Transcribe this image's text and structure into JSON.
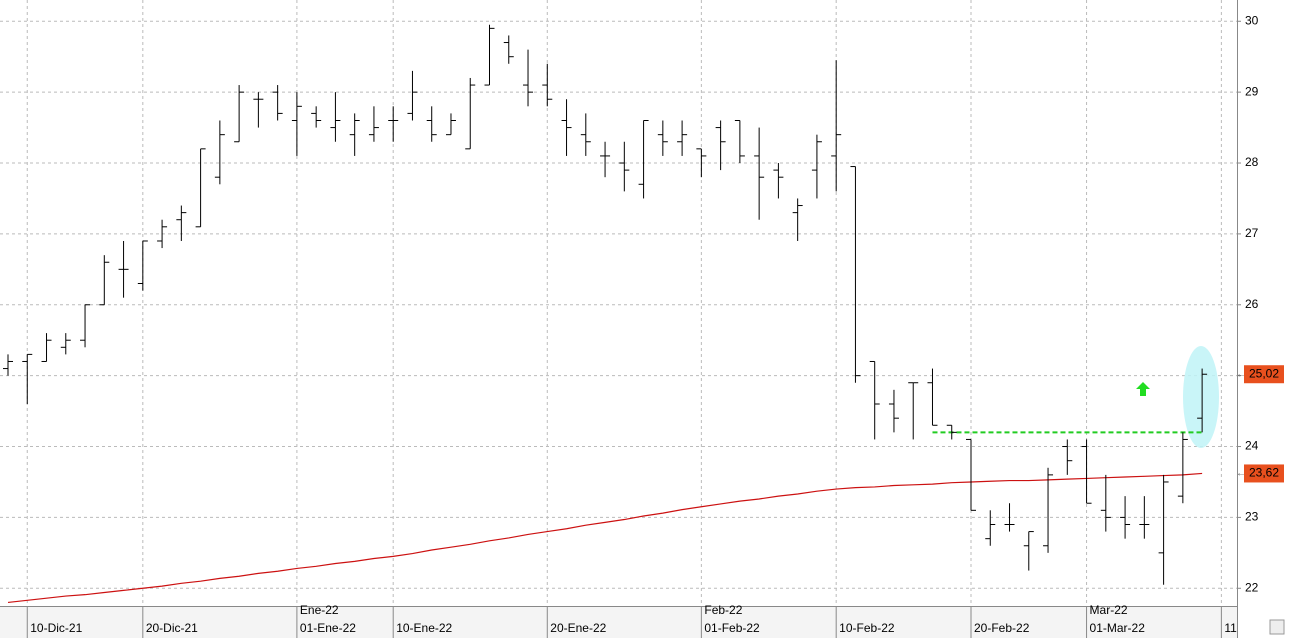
{
  "chart_data": {
    "type": "ohlc",
    "categories": [
      null,
      "10-Dic-21",
      null,
      null,
      null,
      null,
      null,
      "20-Dic-21",
      null,
      null,
      null,
      null,
      null,
      null,
      null,
      "01-Ene-22",
      null,
      null,
      null,
      null,
      "10-Ene-22",
      null,
      null,
      null,
      null,
      null,
      null,
      null,
      "20-Ene-22",
      null,
      null,
      null,
      null,
      null,
      null,
      null,
      "01-Feb-22",
      null,
      null,
      null,
      null,
      null,
      null,
      "10-Feb-22",
      null,
      null,
      null,
      null,
      null,
      null,
      "20-Feb-22",
      null,
      null,
      null,
      null,
      null,
      "01-Mar-22",
      null,
      null,
      null,
      null,
      null,
      null,
      "11"
    ],
    "month_labels": [
      null,
      null,
      null,
      null,
      null,
      null,
      null,
      null,
      null,
      null,
      null,
      null,
      null,
      null,
      null,
      "Ene-22",
      null,
      null,
      null,
      null,
      null,
      null,
      null,
      null,
      null,
      null,
      null,
      null,
      null,
      null,
      null,
      null,
      null,
      null,
      null,
      null,
      "Feb-22",
      null,
      null,
      null,
      null,
      null,
      null,
      null,
      null,
      null,
      null,
      null,
      null,
      null,
      null,
      null,
      null,
      null,
      null,
      null,
      "Mar-22",
      null,
      null,
      null,
      null,
      null,
      null,
      null
    ],
    "open": [
      25.1,
      25.2,
      25.2,
      25.4,
      25.5,
      26.0,
      26.5,
      26.3,
      26.9,
      27.2,
      27.1,
      27.8,
      28.3,
      28.9,
      29.0,
      28.6,
      28.7,
      28.5,
      28.4,
      28.4,
      28.6,
      28.7,
      28.6,
      28.4,
      28.2,
      29.1,
      29.7,
      29.1,
      29.1,
      28.6,
      28.4,
      28.1,
      28.0,
      27.7,
      28.4,
      28.3,
      28.2,
      28.5,
      28.6,
      28.1,
      27.9,
      27.3,
      27.9,
      28.1,
      27.95,
      25.2,
      24.6,
      24.9,
      24.9,
      24.3,
      24.1,
      22.7,
      22.9,
      22.6,
      22.6,
      24.0,
      24.0,
      23.1,
      23.0,
      22.9,
      22.5,
      23.3,
      24.4,
      null
    ],
    "high": [
      25.3,
      25.3,
      25.6,
      25.6,
      26.0,
      26.7,
      26.9,
      26.9,
      27.2,
      27.4,
      28.2,
      28.6,
      29.1,
      29.0,
      29.1,
      29.0,
      28.8,
      29.0,
      28.7,
      28.8,
      28.8,
      29.3,
      28.8,
      28.7,
      29.2,
      29.95,
      29.8,
      29.6,
      29.4,
      28.9,
      28.7,
      28.3,
      28.3,
      28.6,
      28.6,
      28.6,
      28.2,
      28.6,
      28.6,
      28.5,
      28.0,
      27.5,
      28.4,
      29.45,
      27.95,
      25.2,
      24.8,
      24.9,
      25.1,
      24.3,
      24.1,
      23.1,
      23.2,
      22.8,
      23.7,
      24.1,
      24.1,
      23.6,
      23.3,
      23.3,
      23.6,
      24.2,
      25.1,
      null
    ],
    "low": [
      25.0,
      24.6,
      25.2,
      25.3,
      25.4,
      26.0,
      26.1,
      26.2,
      26.8,
      26.9,
      27.1,
      27.7,
      28.3,
      28.5,
      28.6,
      28.1,
      28.5,
      28.3,
      28.1,
      28.3,
      28.3,
      28.6,
      28.3,
      28.4,
      28.2,
      29.1,
      29.4,
      28.8,
      28.8,
      28.1,
      28.1,
      27.8,
      27.6,
      27.5,
      28.1,
      28.1,
      27.8,
      27.9,
      28.0,
      27.2,
      27.5,
      26.9,
      27.5,
      27.6,
      24.9,
      24.1,
      24.2,
      24.1,
      24.3,
      24.1,
      23.1,
      22.6,
      22.8,
      22.25,
      22.5,
      23.6,
      23.2,
      22.8,
      22.7,
      22.7,
      22.05,
      23.2,
      24.2,
      null
    ],
    "close": [
      25.2,
      25.3,
      25.5,
      25.5,
      26.0,
      26.6,
      26.5,
      26.9,
      27.1,
      27.3,
      28.2,
      28.4,
      29.0,
      28.9,
      28.7,
      28.8,
      28.6,
      28.6,
      28.6,
      28.5,
      28.6,
      29.0,
      28.4,
      28.6,
      29.1,
      29.9,
      29.5,
      29.0,
      28.9,
      28.5,
      28.3,
      28.1,
      27.9,
      28.6,
      28.3,
      28.4,
      28.1,
      28.3,
      28.1,
      27.8,
      27.8,
      27.4,
      28.3,
      28.4,
      25.0,
      24.6,
      24.4,
      24.9,
      24.3,
      24.2,
      23.1,
      22.9,
      22.9,
      22.8,
      23.6,
      23.8,
      23.2,
      23.0,
      22.9,
      22.9,
      23.5,
      24.1,
      25.02,
      null
    ],
    "color": "#000000",
    "moving_average": {
      "color": "#cc1111",
      "values": [
        21.8,
        21.83,
        21.86,
        21.89,
        21.91,
        21.94,
        21.97,
        22.0,
        22.03,
        22.07,
        22.1,
        22.14,
        22.17,
        22.21,
        22.24,
        22.28,
        22.31,
        22.35,
        22.38,
        22.42,
        22.45,
        22.49,
        22.54,
        22.58,
        22.62,
        22.67,
        22.71,
        22.76,
        22.8,
        22.84,
        22.89,
        22.93,
        22.97,
        23.02,
        23.06,
        23.11,
        23.15,
        23.19,
        23.23,
        23.26,
        23.3,
        23.33,
        23.37,
        23.4,
        23.42,
        23.43,
        23.45,
        23.46,
        23.47,
        23.49,
        23.5,
        23.51,
        23.52,
        23.52,
        23.53,
        23.54,
        23.55,
        23.56,
        23.57,
        23.58,
        23.59,
        23.6,
        23.62,
        null
      ]
    },
    "support_line": {
      "value": 24.2,
      "color": "#22cc22"
    },
    "price_markers": [
      {
        "value": 25.02,
        "label": "25,02"
      },
      {
        "value": 23.62,
        "label": "23,62"
      }
    ],
    "marker_color": "#e8501e",
    "ylim": [
      21.75,
      30.3
    ],
    "yticks": [
      22,
      23,
      24,
      25,
      26,
      27,
      28,
      29,
      30
    ],
    "grid": true
  }
}
